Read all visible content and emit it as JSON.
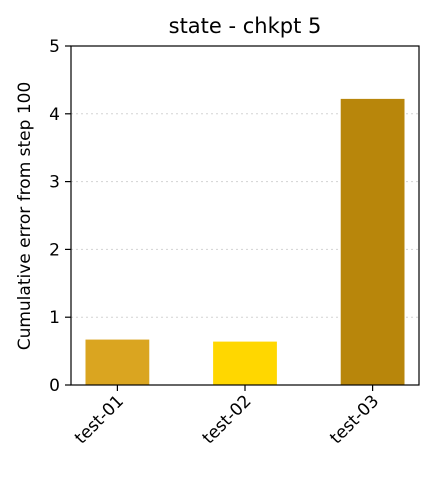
{
  "chart_data": {
    "type": "bar",
    "title": "state - chkpt 5",
    "xlabel": "",
    "ylabel": "Cumulative error from step 100",
    "categories": [
      "test-01",
      "test-02",
      "test-03"
    ],
    "values": [
      0.67,
      0.64,
      4.22
    ],
    "colors": [
      "#daa520",
      "#ffd700",
      "#b8860b"
    ],
    "ylim": [
      0,
      5
    ],
    "yticks": [
      "0",
      "1",
      "2",
      "3",
      "4",
      "5"
    ],
    "grid": "y-dotted",
    "legend": "none"
  }
}
